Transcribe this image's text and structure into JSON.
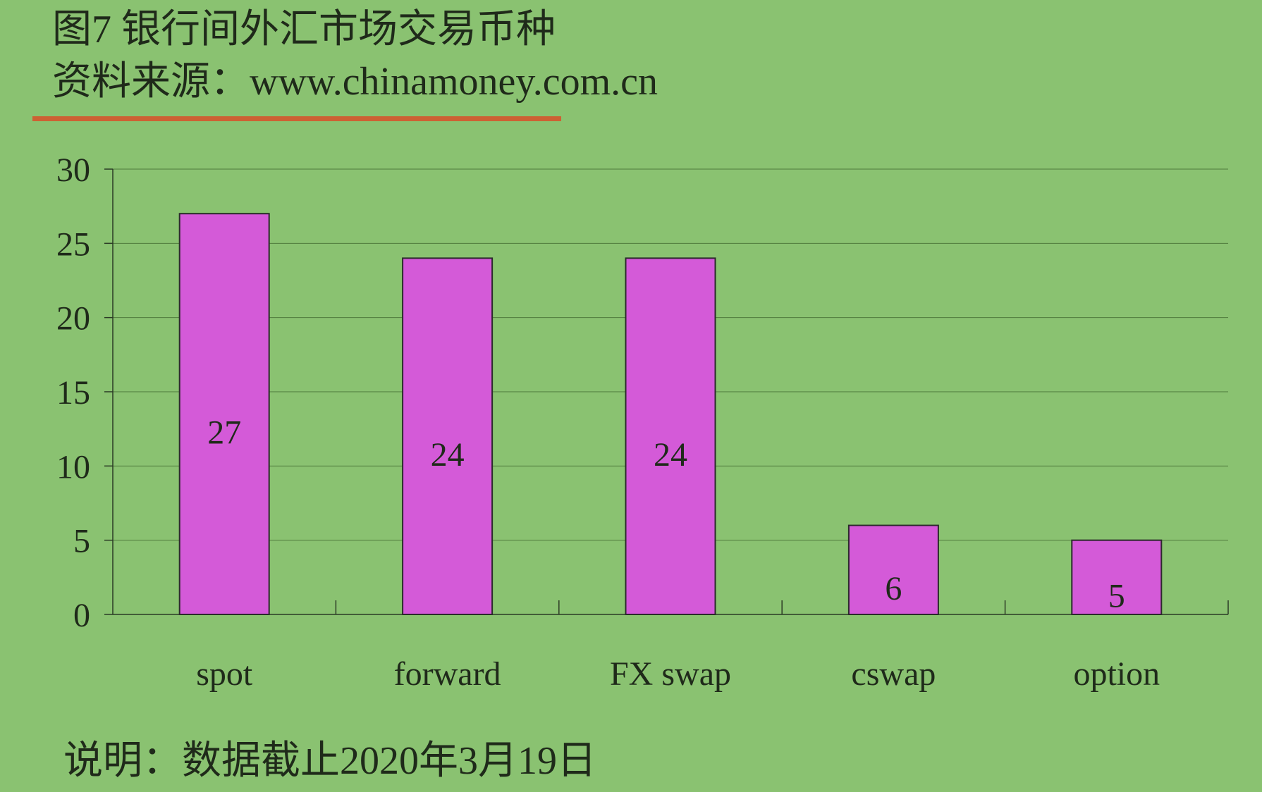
{
  "header": {
    "title": "图7 银行间外汇市场交易币种",
    "source": "资料来源：www.chinamoney.com.cn"
  },
  "footer": {
    "note": "说明：数据截止2020年3月19日"
  },
  "colors": {
    "background": "#8ac271",
    "bar_fill": "#d45ad8",
    "accent_rule": "#cd6133"
  },
  "chart_data": {
    "type": "bar",
    "categories": [
      "spot",
      "forward",
      "FX swap",
      "cswap",
      "option"
    ],
    "values": [
      27,
      24,
      24,
      6,
      5
    ],
    "data_labels": [
      "27",
      "24",
      "24",
      "6",
      "5"
    ],
    "yticks": [
      "0",
      "5",
      "10",
      "15",
      "20",
      "25",
      "30"
    ],
    "ylim": [
      0,
      30
    ],
    "grid": true,
    "legend": "none"
  }
}
